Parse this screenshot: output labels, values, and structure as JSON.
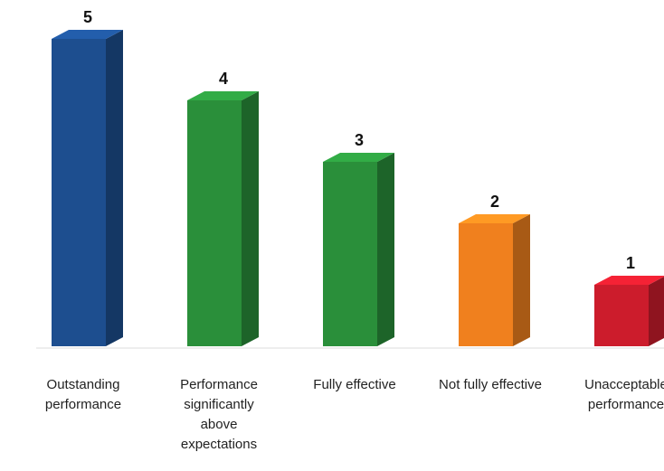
{
  "chart_data": {
    "type": "bar3d",
    "categories": [
      "Outstanding performance",
      "Performance significantly above expectations",
      "Fully effective",
      "Not fully effective",
      "Unacceptable performance"
    ],
    "values": [
      5,
      4,
      3,
      2,
      1
    ],
    "colors": [
      "#1d4e8f",
      "#2a8f3a",
      "#2a8f3a",
      "#f0801e",
      "#cc1c2c"
    ]
  }
}
